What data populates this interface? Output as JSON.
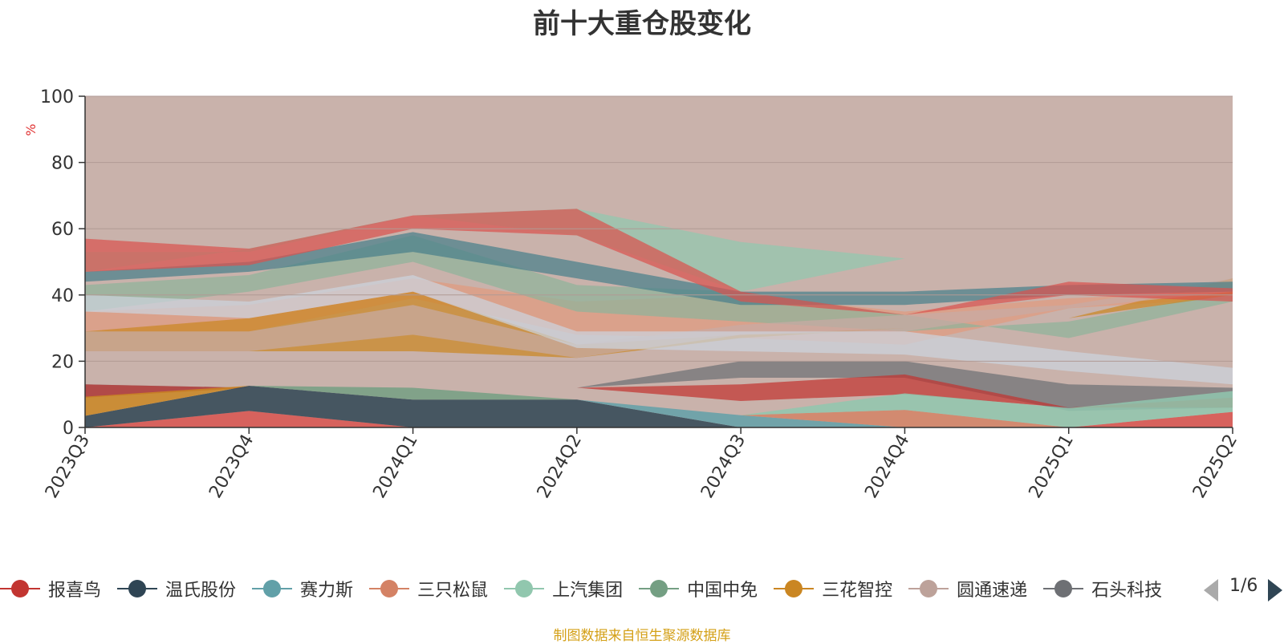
{
  "chart_data": {
    "type": "area",
    "title": "前十大重仓股变化",
    "ylabel": "%",
    "ylim": [
      0,
      100
    ],
    "yticks": [
      0,
      20,
      40,
      60,
      80,
      100
    ],
    "grid": true,
    "categories": [
      "2023Q3",
      "2023Q4",
      "2024Q1",
      "2024Q2",
      "2024Q3",
      "2024Q4",
      "2025Q1",
      "2025Q2"
    ],
    "series": [
      {
        "name": "报喜鸟",
        "color": "#d9534f",
        "values": [
          0,
          5,
          0,
          0,
          0,
          0,
          0,
          4.7
        ]
      },
      {
        "name": "温氏股份",
        "color": "#2f4554",
        "values": [
          3.5,
          7.6,
          8.4,
          8.4,
          0,
          0,
          0,
          0
        ]
      },
      {
        "name": "赛力斯",
        "color": "#61a0a8",
        "values": [
          0,
          0,
          0,
          0,
          3.7,
          0,
          0,
          0
        ]
      },
      {
        "name": "三只松鼠",
        "color": "#d48265",
        "values": [
          0,
          0,
          0,
          0,
          0,
          5.3,
          0,
          0
        ]
      },
      {
        "name": "上汽集团",
        "color": "#91c7ae",
        "values": [
          0,
          0,
          0,
          0,
          0,
          5,
          5.8,
          6.3
        ]
      },
      {
        "name": "中国中免",
        "color": "#749f83",
        "values": [
          0,
          0,
          3.6,
          0,
          0,
          0,
          0,
          0
        ]
      },
      {
        "name": "三花智控",
        "color": "#ca8622",
        "values": [
          5.8,
          0,
          0,
          0,
          0,
          0,
          0,
          0
        ]
      }
    ],
    "legend_position": "bottom",
    "legend_page": "1/6",
    "source_note": "制图数据来自恒生聚源数据库"
  },
  "legend": [
    {
      "label": "报喜鸟",
      "color": "#c23531"
    },
    {
      "label": "温氏股份",
      "color": "#2f4554"
    },
    {
      "label": "赛力斯",
      "color": "#61a0a8"
    },
    {
      "label": "三只松鼠",
      "color": "#d48265"
    },
    {
      "label": "上汽集团",
      "color": "#91c7ae"
    },
    {
      "label": "中国中免",
      "color": "#749f83"
    },
    {
      "label": "三花智控",
      "color": "#ca8622"
    },
    {
      "label": "圆通速递",
      "color": "#bda29a"
    },
    {
      "label": "石头科技",
      "color": "#6e7074"
    }
  ],
  "band_colors": [
    "#d9534f",
    "#2f4554",
    "#61a0a8",
    "#e09a7e",
    "#91c7ae",
    "#8fb39a",
    "#ca8622",
    "#c7aaa3",
    "#6e7074",
    "#ccd3dc",
    "#c23531",
    "#4a7f8a"
  ],
  "background_color": "#c9b2ab"
}
